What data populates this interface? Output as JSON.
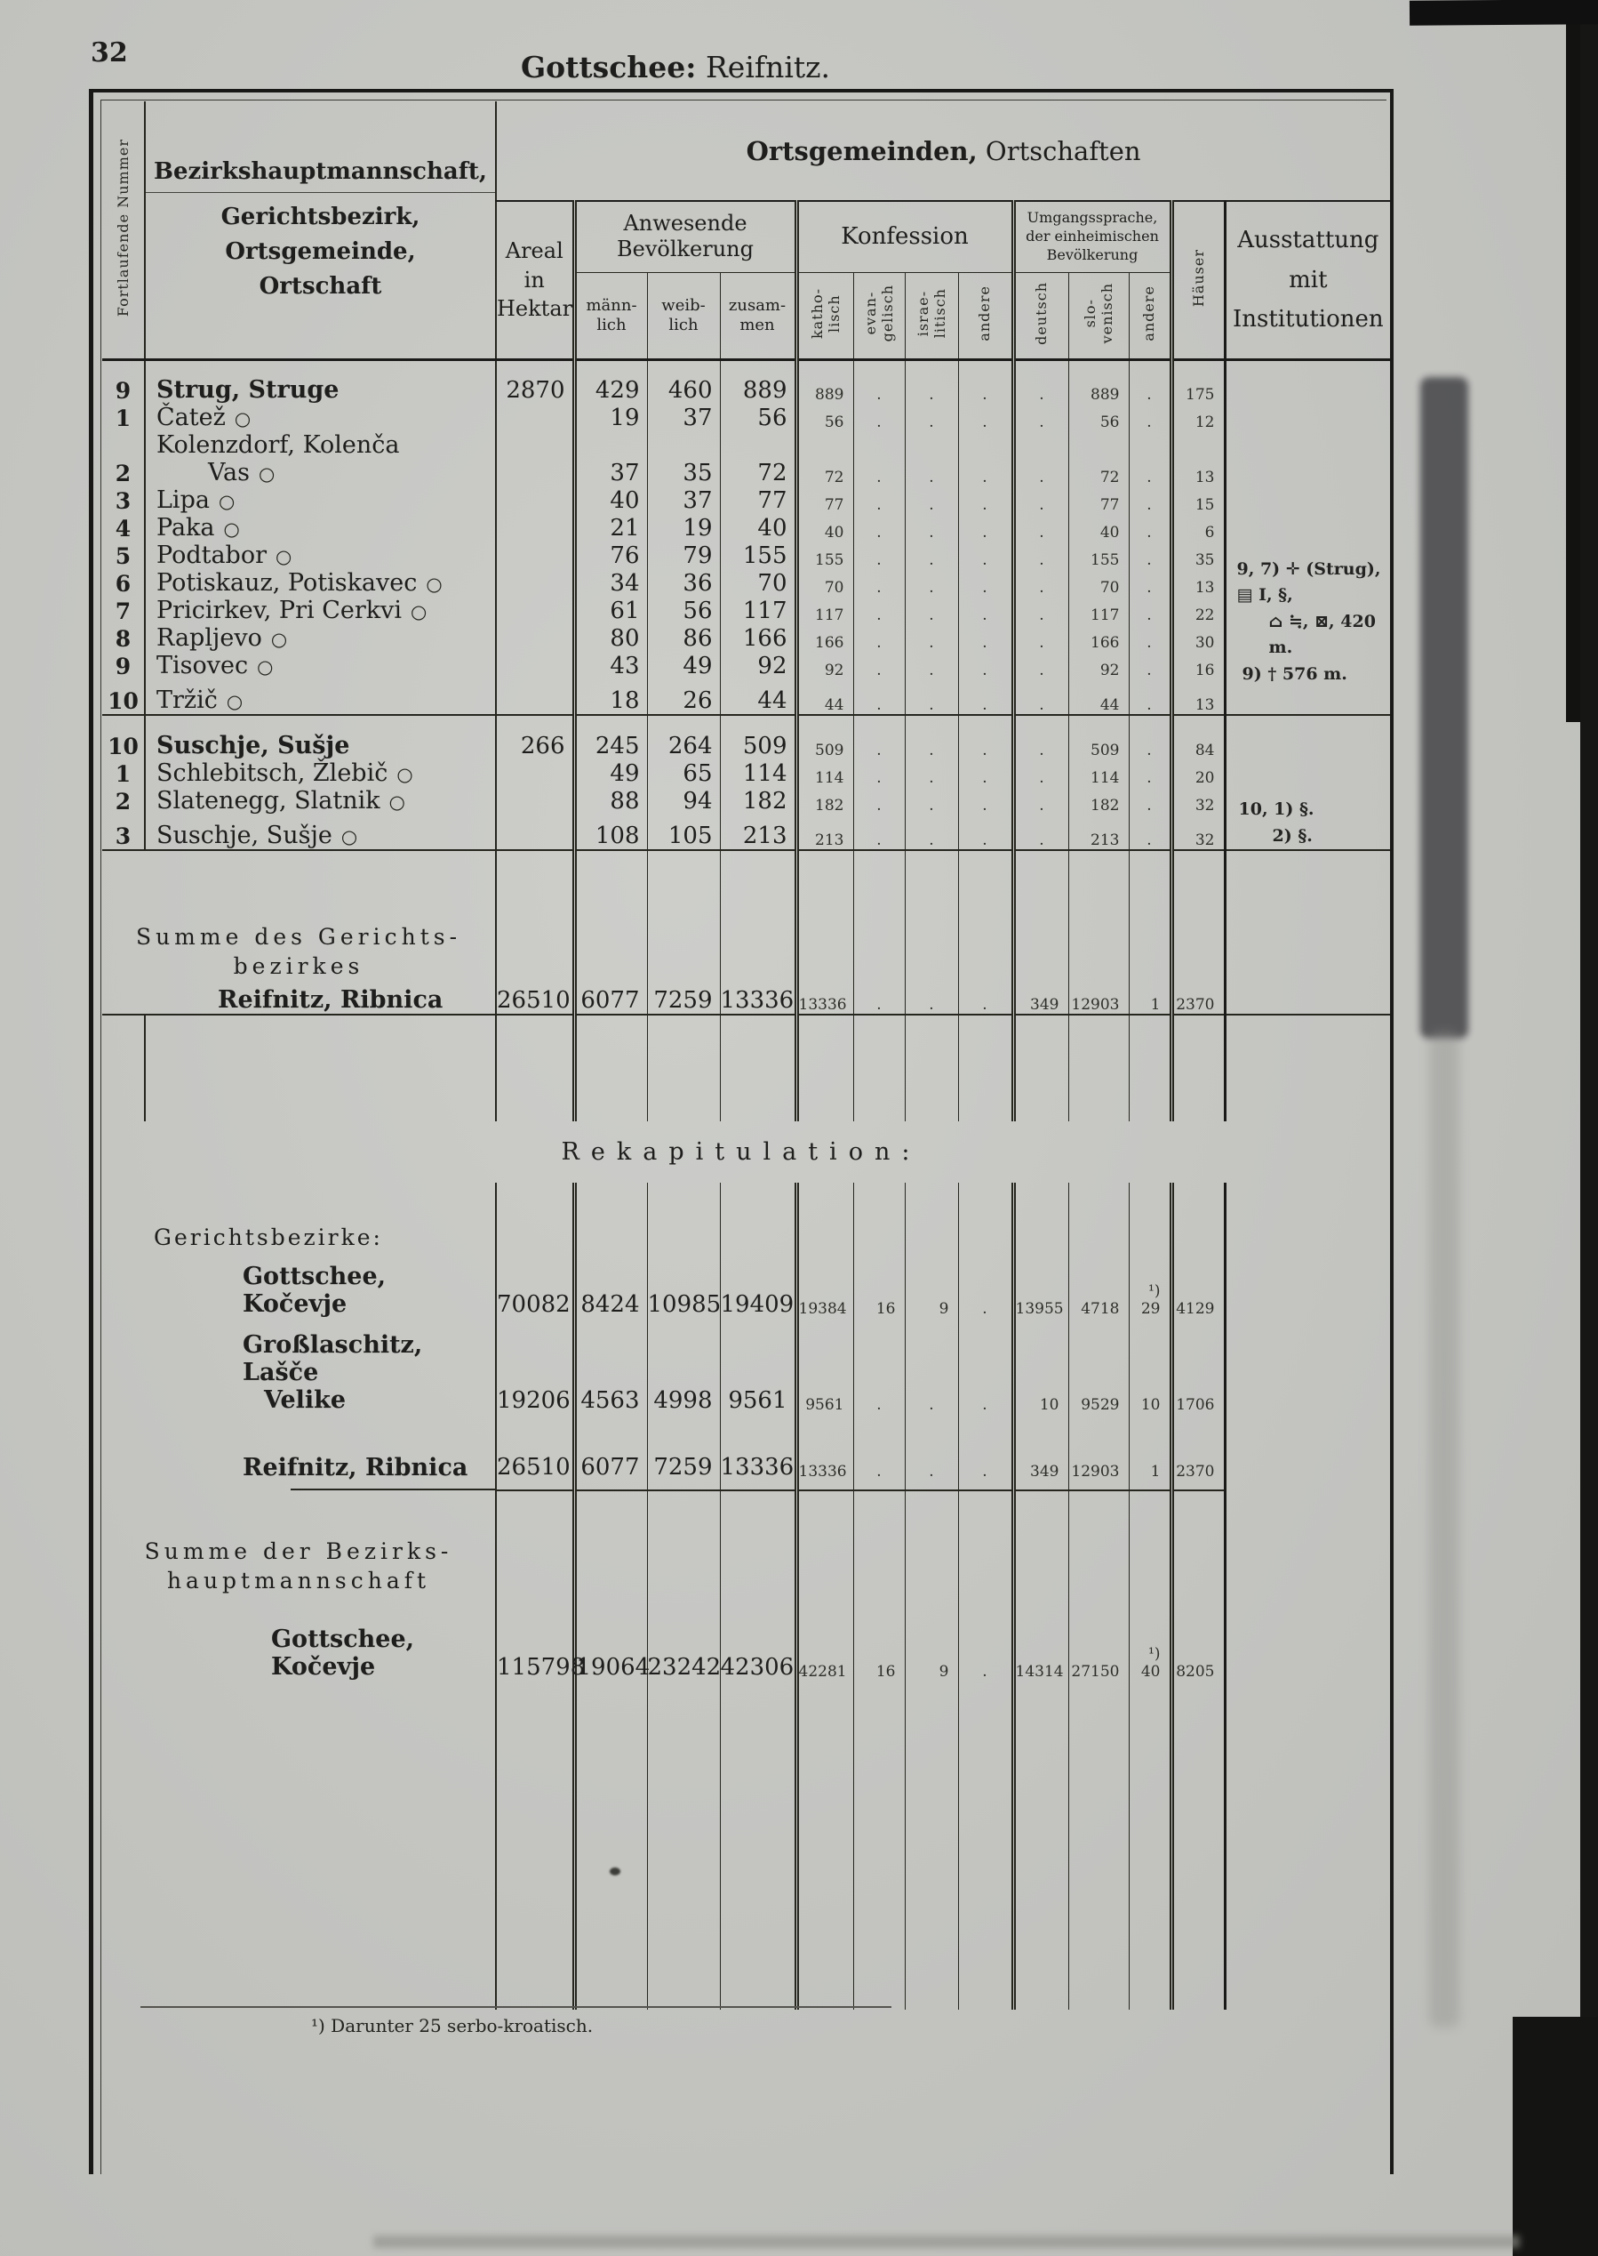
{
  "page": {
    "number": "32",
    "title_bold": "Gottschee:",
    "title_rest": " Reifnitz.",
    "footnote": "¹) Darunter 25 serbo-kroatisch."
  },
  "marks": {
    "circle": "○"
  },
  "header": {
    "num_label": "Fortlaufende Nummer",
    "name_first": "Bezirkshauptmannschaft,",
    "name_rest": "Gerichtsbezirk,\nOrtsgemeinde,\nOrtschaft",
    "banner_bold": "Ortsgemeinden,",
    "banner_rest": " Ortschaften",
    "areal": "Areal\nin\nHektar",
    "anwesende": "Anwesende\nBevölkerung",
    "m": "männ-\nlich",
    "w": "weib-\nlich",
    "z": "zusam-\nmen",
    "konfession": "Konfession",
    "kath": "katho-\nlisch",
    "ev": "evan-\ngelisch",
    "isr": "israe-\nlitisch",
    "and1": "andere",
    "umgang": "Umgangssprache,\nder einheimischen\nBevölkerung",
    "de": "deutsch",
    "slo": "slo-\nvenisch",
    "and2": "andere",
    "haus": "Häuser",
    "ausstattung": "Ausstattung\nmit\nInstitutionen"
  },
  "table": {
    "empty_mark": ".",
    "blocks": [
      {
        "gemeinde": {
          "num": "9",
          "name": "Strug, Struge",
          "areal": "2870",
          "m": "429",
          "w": "460",
          "z": "889",
          "kath": "889",
          "slo": "889",
          "haus": "175"
        },
        "rows": [
          {
            "num": "1",
            "name": "Čatež",
            "m": "19",
            "w": "37",
            "z": "56",
            "kath": "56",
            "slo": "56",
            "haus": "12"
          },
          {
            "num": "2",
            "name": "Kolenzdorf,  Kolenča",
            "name2": "Vas",
            "m": "37",
            "w": "35",
            "z": "72",
            "kath": "72",
            "slo": "72",
            "haus": "13"
          },
          {
            "num": "3",
            "name": "Lipa",
            "m": "40",
            "w": "37",
            "z": "77",
            "kath": "77",
            "slo": "77",
            "haus": "15"
          },
          {
            "num": "4",
            "name": "Paka",
            "m": "21",
            "w": "19",
            "z": "40",
            "kath": "40",
            "slo": "40",
            "haus": "6"
          },
          {
            "num": "5",
            "name": "Podtabor",
            "m": "76",
            "w": "79",
            "z": "155",
            "kath": "155",
            "slo": "155",
            "haus": "35"
          },
          {
            "num": "6",
            "name": "Potiskauz, Potiskavec",
            "m": "34",
            "w": "36",
            "z": "70",
            "kath": "70",
            "slo": "70",
            "haus": "13"
          },
          {
            "num": "7",
            "name": "Pricirkev, Pri Cerkvi",
            "m": "61",
            "w": "56",
            "z": "117",
            "kath": "117",
            "slo": "117",
            "haus": "22"
          },
          {
            "num": "8",
            "name": "Rapljevo",
            "m": "80",
            "w": "86",
            "z": "166",
            "kath": "166",
            "slo": "166",
            "haus": "30"
          },
          {
            "num": "9",
            "name": "Tisovec",
            "m": "43",
            "w": "49",
            "z": "92",
            "kath": "92",
            "slo": "92",
            "haus": "16"
          },
          {
            "num": "10",
            "name": "Tržič",
            "m": "18",
            "w": "26",
            "z": "44",
            "kath": "44",
            "slo": "44",
            "haus": "13"
          }
        ],
        "note_lines": [
          "9, 7) ✛ (Strug), ▤ I, §,",
          "⌂ ≒, ⊠, 420 m.",
          "9) † 576 m."
        ]
      },
      {
        "gemeinde": {
          "num": "10",
          "name": "Suschje, Sušje",
          "areal": "266",
          "m": "245",
          "w": "264",
          "z": "509",
          "kath": "509",
          "slo": "509",
          "haus": "84"
        },
        "rows": [
          {
            "num": "1",
            "name": "Schlebitsch, Žlebič",
            "m": "49",
            "w": "65",
            "z": "114",
            "kath": "114",
            "slo": "114",
            "haus": "20"
          },
          {
            "num": "2",
            "name": "Slatenegg, Slatnik",
            "m": "88",
            "w": "94",
            "z": "182",
            "kath": "182",
            "slo": "182",
            "haus": "32"
          },
          {
            "num": "3",
            "name": "Suschje, Sušje",
            "m": "108",
            "w": "105",
            "z": "213",
            "kath": "213",
            "slo": "213",
            "haus": "32"
          }
        ],
        "note_lines": [
          "10, 1) §.",
          "2) §."
        ]
      }
    ],
    "summe": {
      "label_lines": [
        "Summe des Gerichts-",
        "bezirkes"
      ],
      "label_bold": "Reifnitz, Ribnica",
      "areal": "26510",
      "m": "6077",
      "w": "7259",
      "z": "13336",
      "kath": "13336",
      "ev": ".",
      "isr": ".",
      "and1": ".",
      "de": "349",
      "slo": "12903",
      "and2": "1",
      "haus": "2370"
    }
  },
  "rekapitulation": {
    "heading": "Rekapitulation:",
    "label": "Gerichtsbezirke:",
    "rows": [
      {
        "name": "Gottschee, Kočevje",
        "areal": "70082",
        "m": "8424",
        "w": "10985",
        "z": "19409",
        "kath": "19384",
        "ev": "16",
        "isr": "9",
        "and1": ".",
        "de": "13955",
        "slo": "4718",
        "and2": "¹) 29",
        "haus": "4129"
      },
      {
        "name": "Großlaschitz,  Lašče",
        "name2": "Velike",
        "areal": "19206",
        "m": "4563",
        "w": "4998",
        "z": "9561",
        "kath": "9561",
        "ev": ".",
        "isr": ".",
        "and1": ".",
        "de": "10",
        "slo": "9529",
        "and2": "10",
        "haus": "1706"
      },
      {
        "name": "Reifnitz, Ribnica",
        "areal": "26510",
        "m": "6077",
        "w": "7259",
        "z": "13336",
        "kath": "13336",
        "ev": ".",
        "isr": ".",
        "and1": ".",
        "de": "349",
        "slo": "12903",
        "and2": "1",
        "haus": "2370"
      }
    ],
    "summe_label_lines": [
      "Summe der Bezirks-",
      "hauptmannschaft"
    ],
    "summe_row": {
      "name": "Gottschee, Kočevje",
      "areal": "115798",
      "m": "19064",
      "w": "23242",
      "z": "42306",
      "kath": "42281",
      "ev": "16",
      "isr": "9",
      "and1": ".",
      "de": "14314",
      "slo": "27150",
      "and2": "¹) 40",
      "haus": "8205"
    }
  }
}
